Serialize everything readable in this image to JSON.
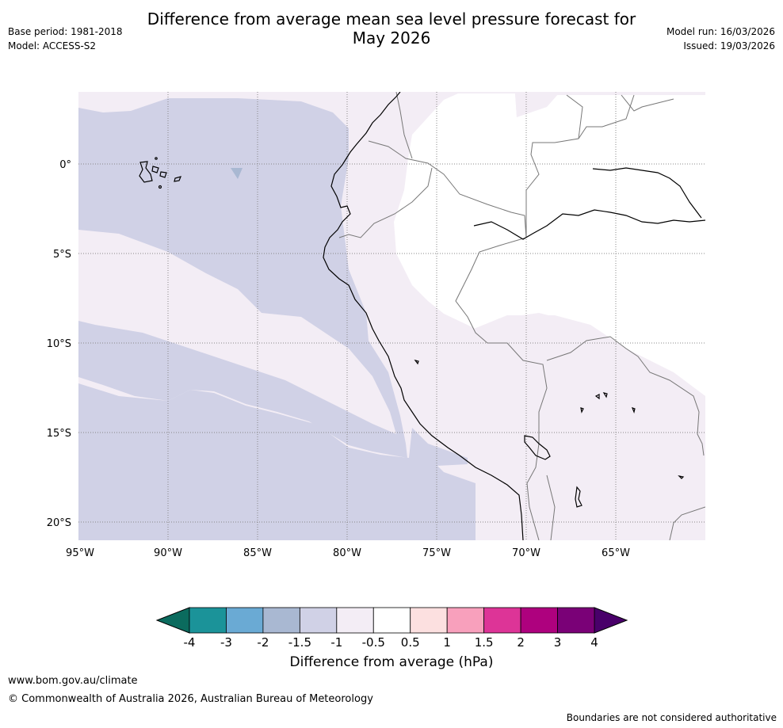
{
  "title": {
    "line1": "Difference from average mean sea level pressure forecast for",
    "line2": "May 2026"
  },
  "meta": {
    "base_period": "Base period: 1981-2018",
    "model": "Model: ACCESS-S2",
    "model_run": "Model run: 16/03/2026",
    "issued": "Issued: 19/03/2026"
  },
  "map": {
    "lat_labels": [
      "0°",
      "5°S",
      "10°S",
      "15°S",
      "20°S"
    ],
    "lon_labels": [
      "95°W",
      "90°W",
      "85°W",
      "80°W",
      "75°W",
      "70°W",
      "65°W"
    ]
  },
  "colorbar": {
    "ticks": [
      "-4",
      "-3",
      "-2",
      "-1.5",
      "-1",
      "-0.5",
      "0.5",
      "1",
      "1.5",
      "2",
      "3",
      "4"
    ],
    "colors": [
      "#1b9399",
      "#6aaad4",
      "#a9b8d2",
      "#d0d1e6",
      "#f3edf5",
      "#ffffff",
      "#fce0e0",
      "#f8a0bc",
      "#dd3497",
      "#ae017e",
      "#7a0177"
    ],
    "under_color": "#0b6b5e",
    "over_color": "#49006a",
    "label": "Difference from average (hPa)"
  },
  "footer": {
    "url": "www.bom.gov.au/climate",
    "copyright": "© Commonwealth of Australia 2026, Australian Bureau of Meteorology",
    "note": "Boundaries are not considered authoritative"
  }
}
